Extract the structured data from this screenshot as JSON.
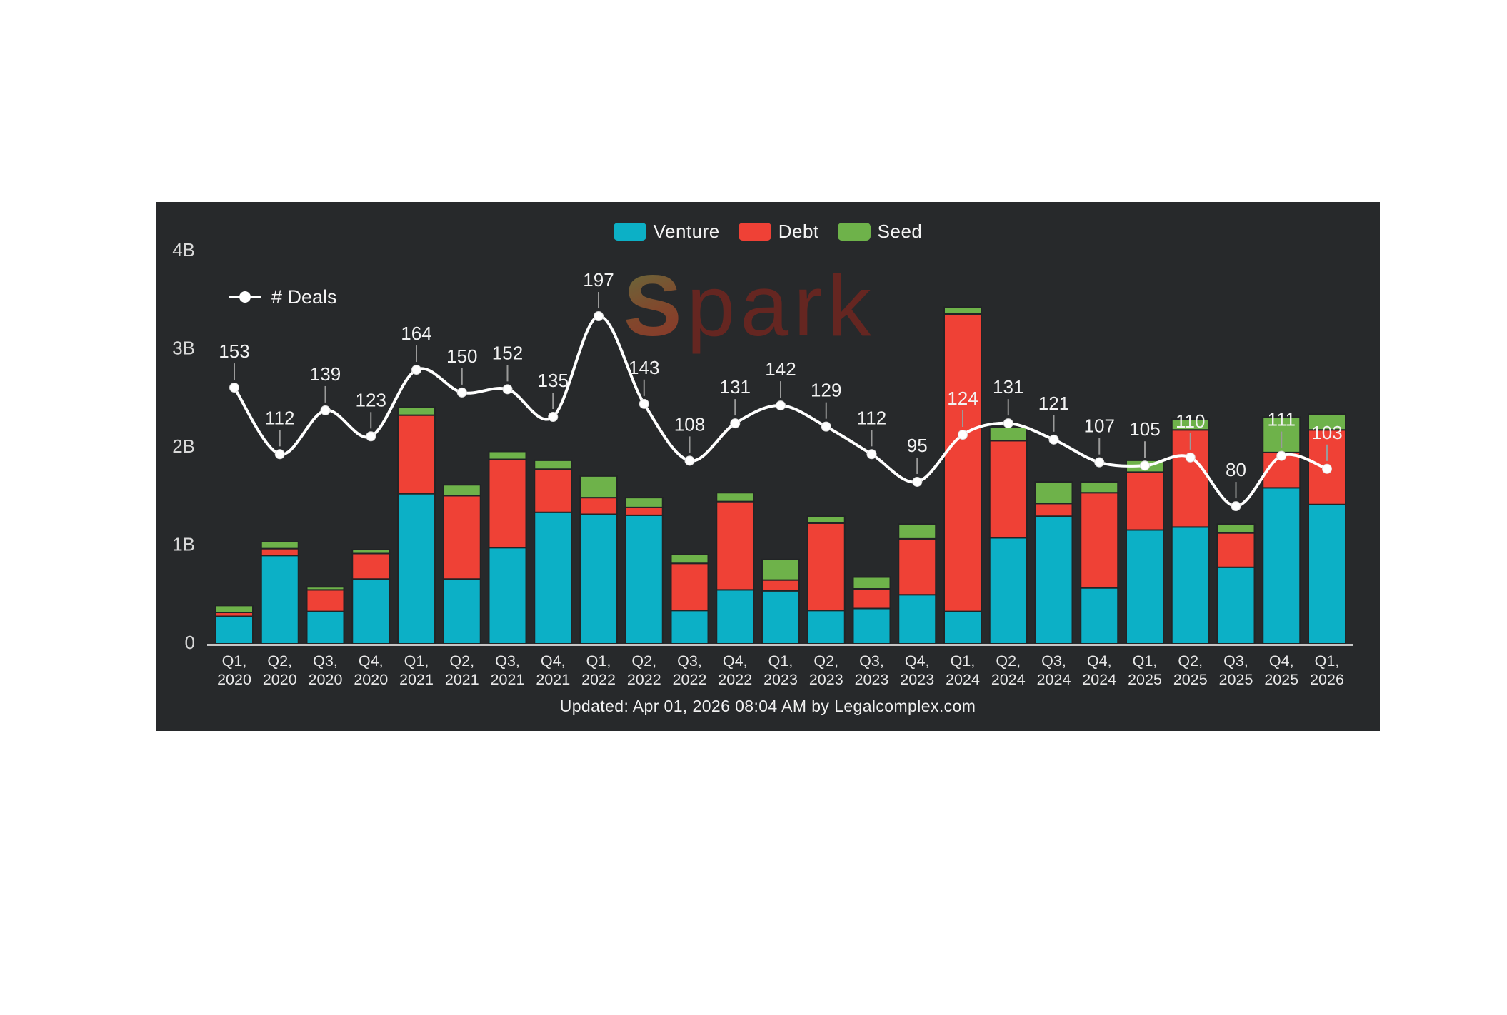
{
  "panel": {
    "background": "#27292b"
  },
  "legend": {
    "items": [
      {
        "label": "Venture",
        "color": "#0CB0C6"
      },
      {
        "label": "Debt",
        "color": "#EF4136"
      },
      {
        "label": "Seed",
        "color": "#6EB24A"
      }
    ]
  },
  "deals_legend": {
    "label": "# Deals"
  },
  "watermark": {
    "first_letter": "S",
    "rest": "park"
  },
  "footer": {
    "text": "Updated: Apr 01, 2026 08:04 AM by Legalcomplex.com"
  },
  "chart_data": {
    "type": "bar",
    "stacked": true,
    "title": "",
    "xlabel": "",
    "ylabel": "",
    "unit": "billions USD",
    "grid": false,
    "legend_position": "top-center",
    "categories": [
      "Q1, 2020",
      "Q2, 2020",
      "Q3, 2020",
      "Q4, 2020",
      "Q1, 2021",
      "Q2, 2021",
      "Q3, 2021",
      "Q4, 2021",
      "Q1, 2022",
      "Q2, 2022",
      "Q3, 2022",
      "Q4, 2022",
      "Q1, 2023",
      "Q2, 2023",
      "Q3, 2023",
      "Q4, 2023",
      "Q1, 2024",
      "Q2, 2024",
      "Q3, 2024",
      "Q4, 2024",
      "Q1, 2025",
      "Q2, 2025",
      "Q3, 2025",
      "Q4, 2025",
      "Q1, 2026"
    ],
    "series": [
      {
        "name": "Venture",
        "color": "#0CB0C6",
        "values": [
          0.28,
          0.9,
          0.33,
          0.66,
          1.53,
          0.66,
          0.98,
          1.34,
          1.32,
          1.31,
          0.34,
          0.55,
          0.54,
          0.34,
          0.36,
          0.5,
          0.33,
          1.08,
          1.3,
          0.57,
          1.16,
          1.19,
          0.78,
          1.59,
          1.42
        ]
      },
      {
        "name": "Debt",
        "color": "#EF4136",
        "values": [
          0.04,
          0.07,
          0.22,
          0.26,
          0.8,
          0.85,
          0.9,
          0.44,
          0.17,
          0.08,
          0.48,
          0.9,
          0.11,
          0.89,
          0.2,
          0.57,
          3.03,
          0.99,
          0.13,
          0.97,
          0.59,
          0.99,
          0.35,
          0.36,
          0.76
        ]
      },
      {
        "name": "Seed",
        "color": "#6EB24A",
        "values": [
          0.07,
          0.07,
          0.03,
          0.04,
          0.08,
          0.11,
          0.08,
          0.09,
          0.22,
          0.1,
          0.09,
          0.09,
          0.21,
          0.07,
          0.12,
          0.15,
          0.07,
          0.14,
          0.22,
          0.11,
          0.12,
          0.11,
          0.09,
          0.36,
          0.16
        ]
      }
    ],
    "line_series": {
      "name": "# Deals",
      "values": [
        153,
        112,
        139,
        123,
        164,
        150,
        152,
        135,
        197,
        143,
        108,
        131,
        142,
        129,
        112,
        95,
        124,
        131,
        121,
        107,
        105,
        110,
        80,
        111,
        103
      ]
    },
    "y_axis": {
      "ticks": [
        "0",
        "1B",
        "2B",
        "3B",
        "4B"
      ],
      "range": [
        0,
        4
      ]
    }
  }
}
